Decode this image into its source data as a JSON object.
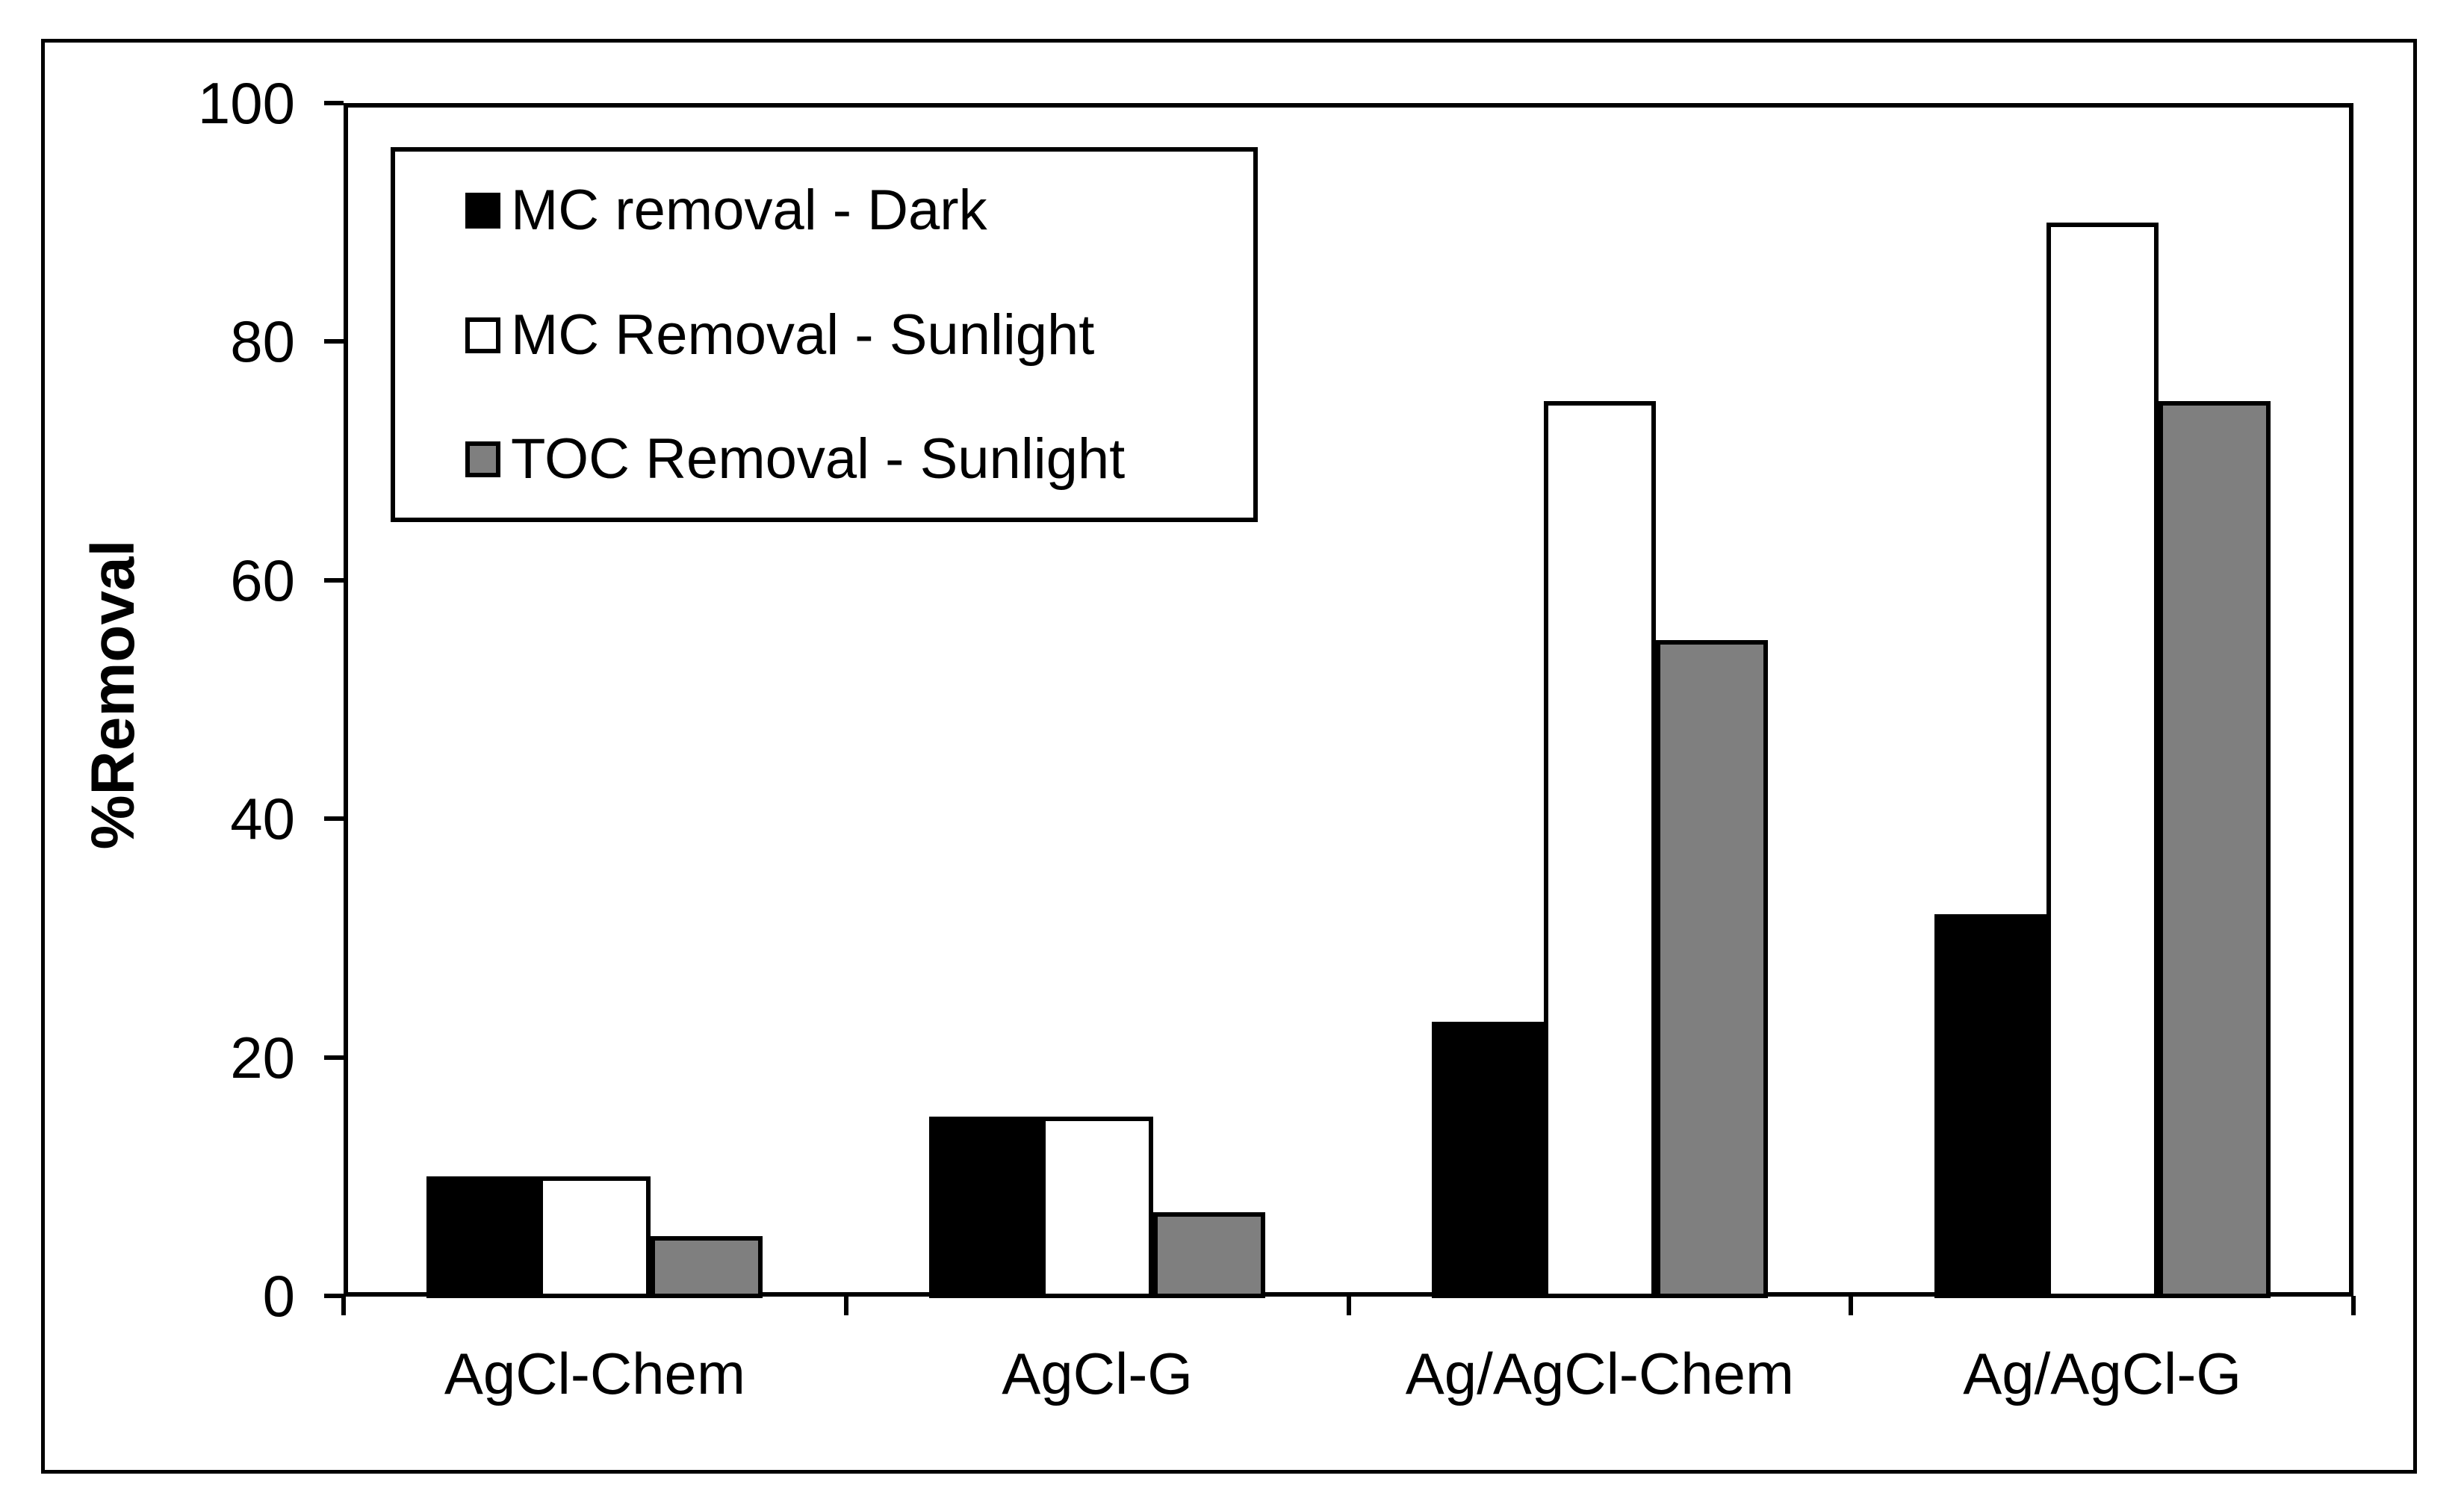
{
  "chart_data": {
    "type": "bar",
    "title": "",
    "ylabel": "%Removal",
    "xlabel": "",
    "ylim": [
      0,
      100
    ],
    "yticks": [
      0,
      20,
      40,
      60,
      80,
      100
    ],
    "grid": false,
    "legend_position": "top-left-inside",
    "plot_frame": true,
    "bar_border_color": "#000000",
    "categories": [
      "AgCl-Chem",
      "AgCl-G",
      "Ag/AgCl-Chem",
      "Ag/AgCl-G"
    ],
    "series": [
      {
        "name": "MC removal - Dark",
        "color": "#000000",
        "values": [
          10,
          15,
          23,
          32
        ]
      },
      {
        "name": "MC Removal - Sunlight",
        "color": "#ffffff",
        "values": [
          10,
          15,
          75,
          90
        ]
      },
      {
        "name": "TOC Removal - Sunlight",
        "color": "#7f7f7f",
        "values": [
          5,
          7,
          55,
          75
        ]
      }
    ]
  }
}
